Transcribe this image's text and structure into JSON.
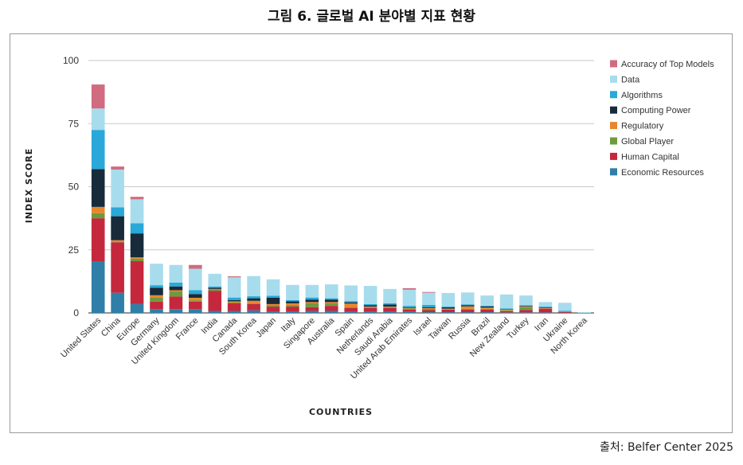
{
  "figure": {
    "title": "그림 6. 글로벌 AI 분야별 지표 현황",
    "source": "출처: Belfer Center 2025"
  },
  "chart_data": {
    "type": "bar",
    "stacked": true,
    "xlabel": "COUNTRIES",
    "ylabel": "INDEX SCORE",
    "ylim": [
      0,
      100
    ],
    "yticks": [
      0,
      25,
      50,
      75,
      100
    ],
    "grid": true,
    "legend_position": "right",
    "categories": [
      "United States",
      "China",
      "Europe",
      "Germany",
      "United Kingdom",
      "France",
      "India",
      "Canada",
      "South Korea",
      "Japan",
      "Italy",
      "Singapore",
      "Australia",
      "Spain",
      "Netherlands",
      "Saudi Arabia",
      "United Arab Emirates",
      "Israel",
      "Taiwan",
      "Russia",
      "Brazil",
      "New Zealand",
      "Turkey",
      "Iran",
      "Ukraine",
      "North Korea"
    ],
    "series": [
      {
        "name": "Economic Resources",
        "color": "#2f7fa8",
        "values": [
          20.5,
          8,
          3.5,
          1.5,
          1.5,
          1.5,
          0.8,
          0.8,
          1,
          0.5,
          0.5,
          0.8,
          0.8,
          0.5,
          0.5,
          0.5,
          0.5,
          0.3,
          0.3,
          0.3,
          0.3,
          0.2,
          0.2,
          0.2,
          0.1,
          0
        ]
      },
      {
        "name": "Human Capital",
        "color": "#c5283d",
        "values": [
          17,
          20,
          17,
          3,
          5,
          3,
          8,
          3,
          2.5,
          2,
          2,
          1.5,
          2,
          1.5,
          1.5,
          1.5,
          0.8,
          0.8,
          1,
          1,
          1,
          0.5,
          1,
          1.5,
          0.3,
          0
        ]
      },
      {
        "name": "Global Player",
        "color": "#6f9a3c",
        "values": [
          2,
          0.3,
          1,
          1.5,
          2,
          0.5,
          0.5,
          0.3,
          0.3,
          0.5,
          0.5,
          1.5,
          1,
          0.2,
          0.3,
          0.3,
          0.5,
          0.5,
          0.2,
          0.3,
          0.3,
          0.3,
          1,
          0.1,
          0.1,
          0
        ]
      },
      {
        "name": "Regulatory",
        "color": "#e8872b",
        "values": [
          2.5,
          0.5,
          0.5,
          1,
          0.5,
          1,
          0.2,
          0.5,
          1,
          0.5,
          0.8,
          0.5,
          0.5,
          1.5,
          0.2,
          0.2,
          0.2,
          0.3,
          0.2,
          1,
          0.5,
          0.3,
          0.3,
          0.2,
          0.1,
          0
        ]
      },
      {
        "name": "Computing Power",
        "color": "#172b3a",
        "values": [
          15,
          9.5,
          9.5,
          3,
          1.5,
          1.5,
          0.5,
          0.5,
          1,
          2.5,
          0.8,
          1,
          1,
          0.5,
          0.5,
          0.8,
          0.3,
          0.3,
          0.5,
          0.5,
          0.5,
          0.2,
          0.2,
          0.2,
          0.1,
          0
        ]
      },
      {
        "name": "Algorithms",
        "color": "#29a8d9",
        "values": [
          15.5,
          3.5,
          4,
          1,
          1.5,
          1.5,
          0.5,
          1,
          0.8,
          0.8,
          0.5,
          0.8,
          0.5,
          0.5,
          0.5,
          0.5,
          0.5,
          1,
          0.3,
          0.3,
          0.3,
          0.3,
          0.3,
          0.3,
          0.2,
          0
        ]
      },
      {
        "name": "Data",
        "color": "#a7dced",
        "values": [
          8.5,
          15,
          9.5,
          8.5,
          7,
          8.5,
          5,
          8,
          8,
          6.5,
          6,
          5,
          5.5,
          6.2,
          7.2,
          5.7,
          6.4,
          4.8,
          5.4,
          4.7,
          4,
          5.5,
          3.9,
          1.8,
          3.1,
          0.3
        ]
      },
      {
        "name": "Accuracy of Top Models",
        "color": "#d06b80",
        "values": [
          9.5,
          1.2,
          1,
          0,
          0,
          1.5,
          0,
          0.4,
          0,
          0,
          0,
          0,
          0,
          0,
          0,
          0,
          0.6,
          0.3,
          0,
          0,
          0,
          0,
          0,
          0,
          0,
          0
        ]
      }
    ]
  }
}
